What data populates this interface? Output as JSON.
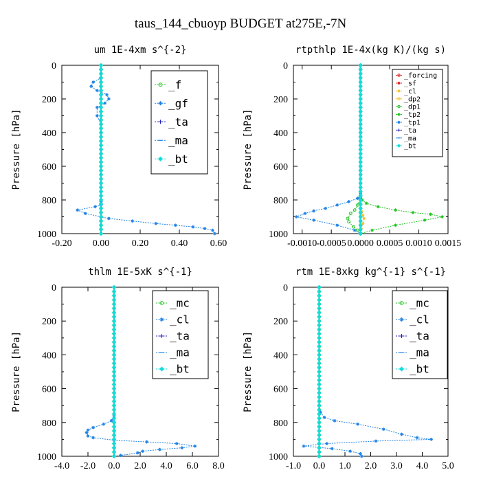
{
  "figure_title": "taus_144_cbuoyp  BUDGET at275E,-7N",
  "colors": {
    "green": "#22c322",
    "blue": "#1e82e6",
    "navy": "#2222bb",
    "cyan": "#11dddd",
    "red": "#dd2020",
    "yellow": "#f2c12e"
  },
  "chart_data": [
    {
      "type": "line",
      "title": "um  1E-4xm s^{-2}",
      "ylabel": "Pressure [hPa]",
      "xlim": [
        -0.2,
        0.6
      ],
      "ylim": [
        1000,
        0
      ],
      "xticks": [
        "-0.20",
        "0.00",
        "0.20",
        "0.40",
        "0.60"
      ],
      "yticks": [
        "0",
        "200",
        "400",
        "600",
        "800",
        "1000"
      ],
      "legend": "top-right",
      "series": [
        {
          "name": "_f",
          "color": "green",
          "symbol": "circle",
          "x": [
            0,
            0
          ],
          "y": [
            0,
            1000
          ]
        },
        {
          "name": "_gf",
          "color": "blue",
          "symbol": "star",
          "x": [
            0.0,
            0.0,
            0.0,
            0.0,
            -0.04,
            -0.05,
            -0.02,
            0.03,
            0.04,
            0.02,
            -0.02,
            -0.02,
            0.0,
            0.0,
            0.0,
            0.0,
            0.0,
            0.0,
            0.0,
            0.0,
            0.0,
            0.0,
            0.0,
            0.0,
            0.0,
            0.0,
            0.0,
            -0.03,
            -0.12,
            -0.08,
            0.04,
            0.16,
            0.28,
            0.38,
            0.47,
            0.53,
            0.57,
            0.58
          ],
          "y": [
            0,
            25,
            50,
            75,
            100,
            125,
            150,
            175,
            200,
            225,
            250,
            300,
            350,
            400,
            450,
            500,
            550,
            600,
            650,
            700,
            725,
            750,
            775,
            800,
            810,
            820,
            830,
            840,
            860,
            880,
            910,
            925,
            940,
            950,
            960,
            970,
            980,
            1000
          ]
        },
        {
          "name": "_ta",
          "color": "navy",
          "symbol": "plus",
          "x": [
            0,
            0
          ],
          "y": [
            0,
            1000
          ]
        },
        {
          "name": "_ma",
          "color": "blue",
          "symbol": "dash",
          "x": [
            0,
            0
          ],
          "y": [
            0,
            1000
          ]
        },
        {
          "name": "_bt",
          "color": "cyan",
          "symbol": "diamond",
          "x": [
            0,
            0
          ],
          "y": [
            0,
            1000
          ]
        }
      ]
    },
    {
      "type": "line",
      "title": "rtpthlp  1E-4x(kg K)/(kg s)",
      "ylabel": "Pressure [hPa]",
      "xlim": [
        -0.00115,
        0.0015
      ],
      "ylim": [
        1000,
        0
      ],
      "xticks": [
        "-0.0010",
        "-0.0005",
        "0.0000",
        "0.0005",
        "0.0010",
        "0.0015"
      ],
      "xtick_values": [
        -0.001,
        -0.0005,
        0.0,
        0.0005,
        0.001,
        0.0015
      ],
      "yticks": [
        "0",
        "200",
        "400",
        "600",
        "800",
        "1000"
      ],
      "legend": "top-right",
      "series": [
        {
          "name": "_forcing",
          "color": "red",
          "symbol": "circle",
          "x": [
            0,
            0
          ],
          "y": [
            0,
            1000
          ]
        },
        {
          "name": "_sf",
          "color": "red",
          "symbol": "star",
          "x": [
            0,
            0
          ],
          "y": [
            0,
            1000
          ]
        },
        {
          "name": "_cl",
          "color": "yellow",
          "symbol": "star",
          "x": [
            0,
            0,
            0.0,
            2e-05,
            4e-05,
            6e-05,
            4e-05,
            1e-05,
            0
          ],
          "y": [
            0,
            820,
            850,
            870,
            890,
            910,
            940,
            970,
            1000
          ]
        },
        {
          "name": "_dp2",
          "color": "yellow",
          "symbol": "circle",
          "x": [
            0,
            0
          ],
          "y": [
            0,
            1000
          ]
        },
        {
          "name": "_dp1",
          "color": "green",
          "symbol": "circle",
          "x": [
            0,
            0,
            -5e-05,
            -0.0001,
            -0.00017,
            -0.00022,
            -0.0002,
            -0.00012,
            -5e-05,
            0
          ],
          "y": [
            0,
            790,
            830,
            860,
            880,
            910,
            930,
            960,
            980,
            1000
          ]
        },
        {
          "name": "_tp2",
          "color": "green",
          "symbol": "star",
          "x": [
            0,
            0,
            3e-05,
            0.0001,
            0.0003,
            0.0006,
            0.0009,
            0.0012,
            0.0014,
            0.0011,
            0.0006,
            0.0002,
            0
          ],
          "y": [
            0,
            780,
            800,
            820,
            840,
            860,
            875,
            885,
            900,
            920,
            950,
            980,
            1000
          ]
        },
        {
          "name": "_tp1",
          "color": "blue",
          "symbol": "star",
          "x": [
            0,
            0,
            -5e-05,
            -0.0002,
            -0.0004,
            -0.0006,
            -0.0008,
            -0.00095,
            -0.0011,
            -0.0008,
            -0.0004,
            -0.0001,
            0
          ],
          "y": [
            0,
            760,
            790,
            810,
            830,
            850,
            865,
            880,
            900,
            920,
            950,
            980,
            1000
          ]
        },
        {
          "name": "_ta",
          "color": "navy",
          "symbol": "plus",
          "x": [
            0,
            0
          ],
          "y": [
            0,
            1000
          ]
        },
        {
          "name": "_ma",
          "color": "blue",
          "symbol": "dash",
          "x": [
            0,
            0
          ],
          "y": [
            0,
            1000
          ]
        },
        {
          "name": "_bt",
          "color": "cyan",
          "symbol": "diamond",
          "x": [
            0,
            0
          ],
          "y": [
            0,
            1000
          ]
        }
      ]
    },
    {
      "type": "line",
      "title": "thlm  1E-5xK s^{-1}",
      "ylabel": "Pressure [hPa]",
      "xlim": [
        -4.0,
        8.0
      ],
      "ylim": [
        1000,
        0
      ],
      "xticks": [
        "-4.0",
        "-2.0",
        "0.0",
        "2.0",
        "4.0",
        "6.0",
        "8.0"
      ],
      "yticks": [
        "0",
        "200",
        "400",
        "600",
        "800",
        "1000"
      ],
      "legend": "top-right",
      "series": [
        {
          "name": "_mc",
          "color": "green",
          "symbol": "circle",
          "x": [
            0,
            0
          ],
          "y": [
            0,
            1000
          ]
        },
        {
          "name": "_cl",
          "color": "blue",
          "symbol": "star",
          "x": [
            0,
            0,
            -0.2,
            -0.8,
            -1.6,
            -2.0,
            -2.1,
            -2.0,
            -1.6,
            0.0,
            2.5,
            4.8,
            6.2,
            5.2,
            3.5,
            2.2,
            1.8,
            0.5,
            0
          ],
          "y": [
            0,
            760,
            790,
            810,
            830,
            845,
            860,
            880,
            890,
            905,
            915,
            925,
            940,
            950,
            960,
            970,
            980,
            995,
            1000
          ]
        },
        {
          "name": "_ta",
          "color": "navy",
          "symbol": "plus",
          "x": [
            0,
            0
          ],
          "y": [
            0,
            1000
          ]
        },
        {
          "name": "_ma",
          "color": "blue",
          "symbol": "dash",
          "x": [
            0,
            0
          ],
          "y": [
            0,
            1000
          ]
        },
        {
          "name": "_bt",
          "color": "cyan",
          "symbol": "diamond",
          "x": [
            0,
            0
          ],
          "y": [
            0,
            1000
          ]
        }
      ]
    },
    {
      "type": "line",
      "title": "rtm  1E-8xkg kg^{-1} s^{-1}",
      "ylabel": "Pressure [hPa]",
      "xlim": [
        -1.0,
        5.0
      ],
      "ylim": [
        1000,
        0
      ],
      "xticks": [
        "-1.0",
        "0.0",
        "1.0",
        "2.0",
        "3.0",
        "4.0",
        "5.0"
      ],
      "yticks": [
        "0",
        "200",
        "400",
        "600",
        "800",
        "1000"
      ],
      "legend": "top-right",
      "series": [
        {
          "name": "_mc",
          "color": "green",
          "symbol": "circle",
          "x": [
            0,
            0
          ],
          "y": [
            0,
            1000
          ]
        },
        {
          "name": "_cl",
          "color": "blue",
          "symbol": "star",
          "x": [
            0,
            0,
            0.05,
            0.2,
            0.6,
            1.5,
            2.5,
            3.2,
            3.8,
            4.35,
            2.2,
            0.3,
            -0.6,
            0.5,
            1.2,
            1.6,
            1.65
          ],
          "y": [
            0,
            700,
            740,
            770,
            790,
            810,
            840,
            870,
            890,
            900,
            910,
            925,
            940,
            955,
            970,
            985,
            1000
          ]
        },
        {
          "name": "_ta",
          "color": "navy",
          "symbol": "plus",
          "x": [
            0,
            0
          ],
          "y": [
            0,
            1000
          ]
        },
        {
          "name": "_ma",
          "color": "blue",
          "symbol": "dash",
          "x": [
            0,
            0
          ],
          "y": [
            0,
            1000
          ]
        },
        {
          "name": "_bt",
          "color": "cyan",
          "symbol": "diamond",
          "x": [
            0,
            0
          ],
          "y": [
            0,
            1000
          ]
        }
      ]
    }
  ]
}
